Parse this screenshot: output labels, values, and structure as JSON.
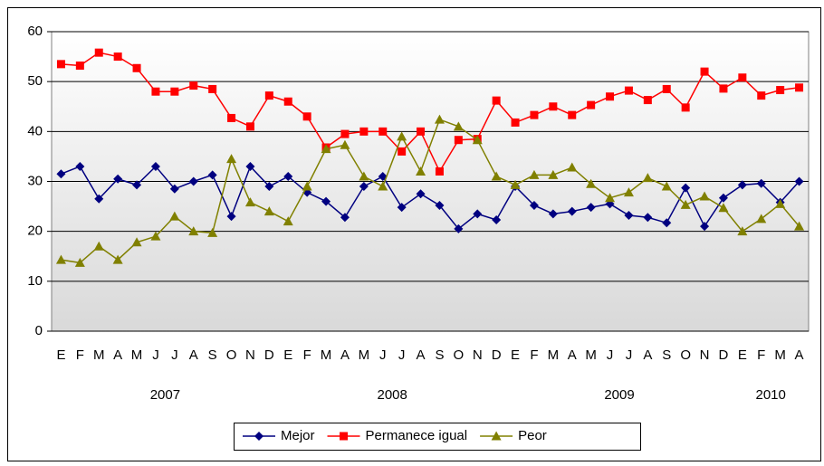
{
  "chart_data": {
    "type": "line",
    "categories": [
      "E",
      "F",
      "M",
      "A",
      "M",
      "J",
      "J",
      "A",
      "S",
      "O",
      "N",
      "D",
      "E",
      "F",
      "M",
      "A",
      "M",
      "J",
      "J",
      "A",
      "S",
      "O",
      "N",
      "D",
      "E",
      "F",
      "M",
      "A",
      "M",
      "J",
      "J",
      "A",
      "S",
      "O",
      "N",
      "D",
      "E",
      "F",
      "M",
      "A"
    ],
    "year_labels": [
      "2007",
      "2008",
      "2009",
      "2010"
    ],
    "series": [
      {
        "name": "Mejor",
        "color": "#000080",
        "marker": "diamond",
        "values": [
          31.5,
          33,
          26.5,
          30.5,
          29.3,
          33,
          28.5,
          30,
          31.3,
          23,
          33,
          29,
          31,
          27.8,
          26,
          22.8,
          29,
          31,
          24.8,
          27.5,
          25.2,
          20.5,
          23.5,
          22.3,
          29,
          25.2,
          23.5,
          24,
          24.8,
          25.5,
          23.2,
          22.8,
          21.7,
          28.7,
          21,
          26.7,
          29.3,
          29.6,
          25.8,
          30
        ]
      },
      {
        "name": "Permanece igual",
        "color": "#ff0000",
        "marker": "square",
        "values": [
          53.5,
          53.2,
          55.8,
          55,
          52.7,
          48,
          48,
          49.2,
          48.5,
          42.7,
          41,
          47.2,
          46,
          43,
          36.8,
          39.5,
          40,
          40,
          36,
          40,
          32,
          38.3,
          38.5,
          46.2,
          41.8,
          43.3,
          45,
          43.3,
          45.3,
          47,
          48.2,
          46.3,
          48.5,
          44.8,
          52,
          48.6,
          50.8,
          47.2,
          48.3,
          48.8
        ]
      },
      {
        "name": "Peor",
        "color": "#808000",
        "marker": "triangle",
        "values": [
          14.3,
          13.7,
          17,
          14.3,
          17.8,
          19,
          23,
          20,
          19.7,
          34.5,
          25.8,
          24,
          22,
          29,
          36.5,
          37.3,
          31,
          29,
          39,
          32,
          42.4,
          41,
          38.3,
          31,
          29.3,
          31.3,
          31.3,
          32.8,
          29.5,
          26.7,
          27.8,
          30.7,
          29,
          25.3,
          27,
          24.7,
          20,
          22.5,
          25.5,
          21
        ]
      }
    ],
    "ylim": [
      0,
      60
    ],
    "yticks": [
      0,
      10,
      20,
      30,
      40,
      50,
      60
    ],
    "grid": true,
    "legend": "bottom"
  }
}
